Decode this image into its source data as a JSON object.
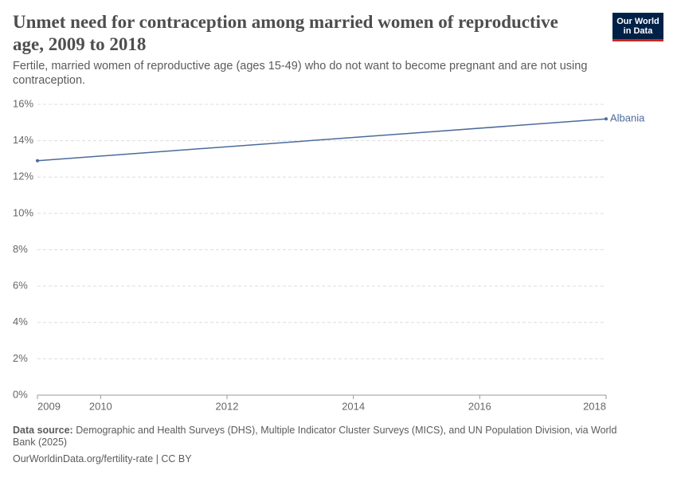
{
  "chart_data": {
    "type": "line",
    "title": "Unmet need for contraception among married women of reproductive age, 2009 to 2018",
    "subtitle": "Fertile, married women of reproductive age (ages 15-49) who do not want to become pregnant and are not using contraception.",
    "logo": [
      "Our World",
      "in Data"
    ],
    "source_label": "Data source:",
    "source": "Demographic and Health Surveys (DHS), Multiple Indicator Cluster Surveys (MICS), and UN Population Division, via World Bank (2025)",
    "footer": "OurWorldinData.org/fertility-rate | CC BY",
    "x": [
      2009,
      2018
    ],
    "series": [
      {
        "name": "Albania",
        "color": "#4c6a9c",
        "values": [
          12.9,
          15.2
        ]
      }
    ],
    "xlim": [
      2009,
      2018
    ],
    "xticks": [
      2009,
      2010,
      2012,
      2014,
      2016,
      2018
    ],
    "ylim": [
      0,
      16
    ],
    "yticks": [
      {
        "value": 0,
        "label": "0%"
      },
      {
        "value": 2,
        "label": "2%"
      },
      {
        "value": 4,
        "label": "4%"
      },
      {
        "value": 6,
        "label": "6%"
      },
      {
        "value": 8,
        "label": "8%"
      },
      {
        "value": 10,
        "label": "10%"
      },
      {
        "value": 12,
        "label": "12%"
      },
      {
        "value": 14,
        "label": "14%"
      },
      {
        "value": 16,
        "label": "16%"
      }
    ],
    "grid": true
  }
}
